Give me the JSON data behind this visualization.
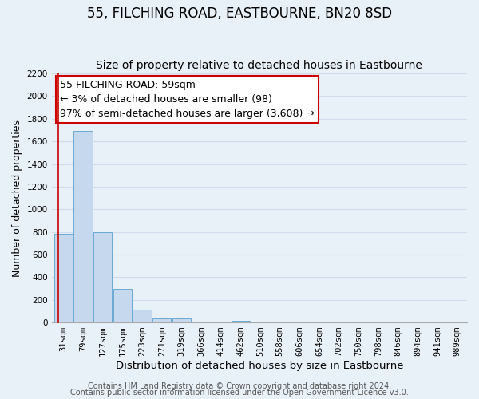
{
  "title": "55, FILCHING ROAD, EASTBOURNE, BN20 8SD",
  "subtitle": "Size of property relative to detached houses in Eastbourne",
  "xlabel": "Distribution of detached houses by size in Eastbourne",
  "ylabel": "Number of detached properties",
  "categories": [
    "31sqm",
    "79sqm",
    "127sqm",
    "175sqm",
    "223sqm",
    "271sqm",
    "319sqm",
    "366sqm",
    "414sqm",
    "462sqm",
    "510sqm",
    "558sqm",
    "606sqm",
    "654sqm",
    "702sqm",
    "750sqm",
    "798sqm",
    "846sqm",
    "894sqm",
    "941sqm",
    "989sqm"
  ],
  "bar_values": [
    780,
    1690,
    800,
    300,
    110,
    38,
    35,
    5,
    0,
    15,
    0,
    0,
    0,
    0,
    0,
    0,
    0,
    0,
    0,
    0,
    0
  ],
  "bar_color": "#c5d8ee",
  "bar_edge_color": "#6aaad4",
  "grid_color": "#d0dcea",
  "background_color": "#e8f0f8",
  "annotation_text": "55 FILCHING ROAD: 59sqm\n← 3% of detached houses are smaller (98)\n97% of semi-detached houses are larger (3,608) →",
  "annotation_box_color": "#ffffff",
  "annotation_border_color": "#cc0000",
  "ylim": [
    0,
    2200
  ],
  "yticks": [
    0,
    200,
    400,
    600,
    800,
    1000,
    1200,
    1400,
    1600,
    1800,
    2000,
    2200
  ],
  "footer1": "Contains HM Land Registry data © Crown copyright and database right 2024.",
  "footer2": "Contains public sector information licensed under the Open Government Licence v3.0.",
  "title_fontsize": 12,
  "subtitle_fontsize": 10,
  "xlabel_fontsize": 9.5,
  "ylabel_fontsize": 9,
  "tick_fontsize": 7.5,
  "annotation_fontsize": 9,
  "footer_fontsize": 7
}
